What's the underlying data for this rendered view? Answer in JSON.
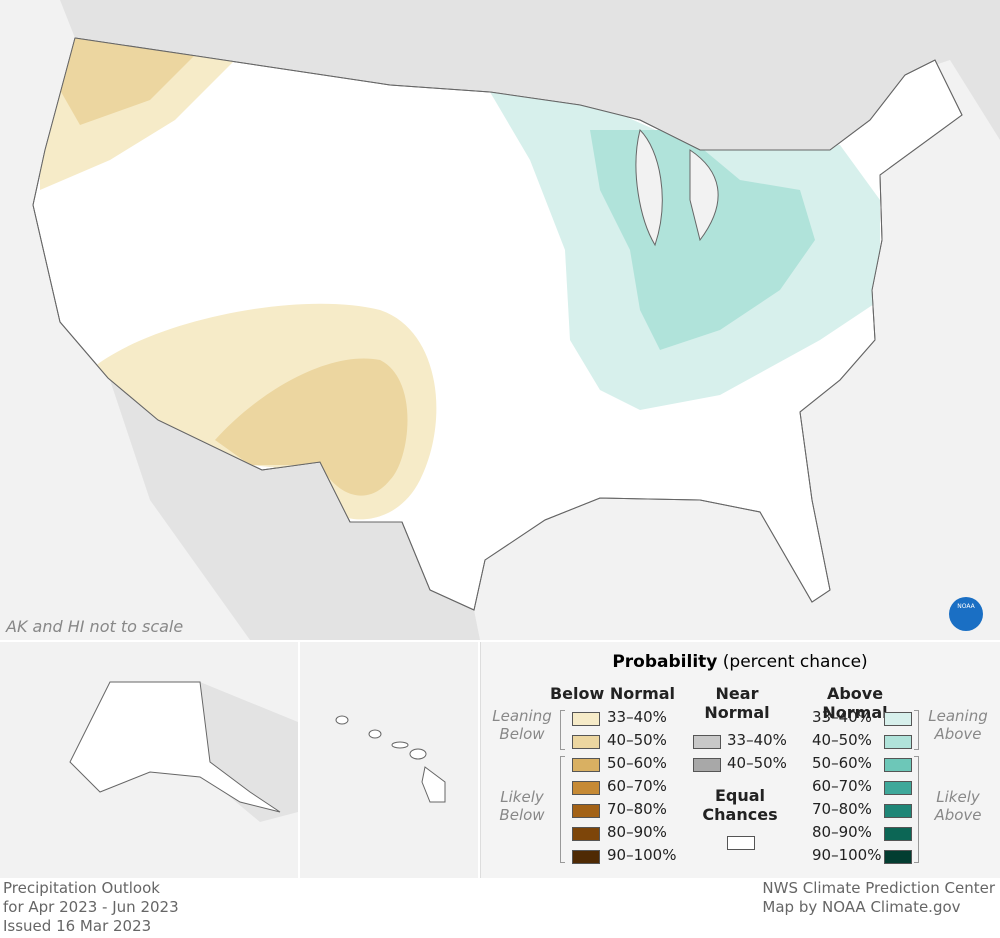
{
  "map": {
    "note": "AK and HI not to scale",
    "logo": "NOAA"
  },
  "legend": {
    "title": "Probability",
    "subtitle": "(percent chance)",
    "below": {
      "heading": "Below Normal",
      "leaning": "Leaning Below",
      "likely": "Likely Below",
      "items": [
        {
          "label": "33–40%",
          "color": "#f6ebc8"
        },
        {
          "label": "40–50%",
          "color": "#ecd6a0"
        },
        {
          "label": "50–60%",
          "color": "#d9b062"
        },
        {
          "label": "60–70%",
          "color": "#c68a35"
        },
        {
          "label": "70–80%",
          "color": "#a36216"
        },
        {
          "label": "80–90%",
          "color": "#7d4509"
        },
        {
          "label": "90–100%",
          "color": "#4f2a04"
        }
      ]
    },
    "near": {
      "heading": "Near Normal",
      "items": [
        {
          "label": "33–40%",
          "color": "#c8c8c8"
        },
        {
          "label": "40–50%",
          "color": "#a8a8a8"
        }
      ]
    },
    "equal": {
      "heading": "Equal Chances",
      "color": "#ffffff"
    },
    "above": {
      "heading": "Above Normal",
      "leaning": "Leaning Above",
      "likely": "Likely Above",
      "items": [
        {
          "label": "33–40%",
          "color": "#d7f0ec"
        },
        {
          "label": "40–50%",
          "color": "#b0e3da"
        },
        {
          "label": "50–60%",
          "color": "#6dc7b8"
        },
        {
          "label": "60–70%",
          "color": "#3ea89a"
        },
        {
          "label": "70–80%",
          "color": "#1f8677"
        },
        {
          "label": "80–90%",
          "color": "#0c6655"
        },
        {
          "label": "90–100%",
          "color": "#033d31"
        }
      ]
    }
  },
  "footer": {
    "left": [
      "Precipitation Outlook",
      "for Apr 2023 - Jun 2023",
      "Issued 16 Mar 2023"
    ],
    "right": [
      "NWS Climate Prediction Center",
      "Map by NOAA Climate.gov"
    ]
  }
}
